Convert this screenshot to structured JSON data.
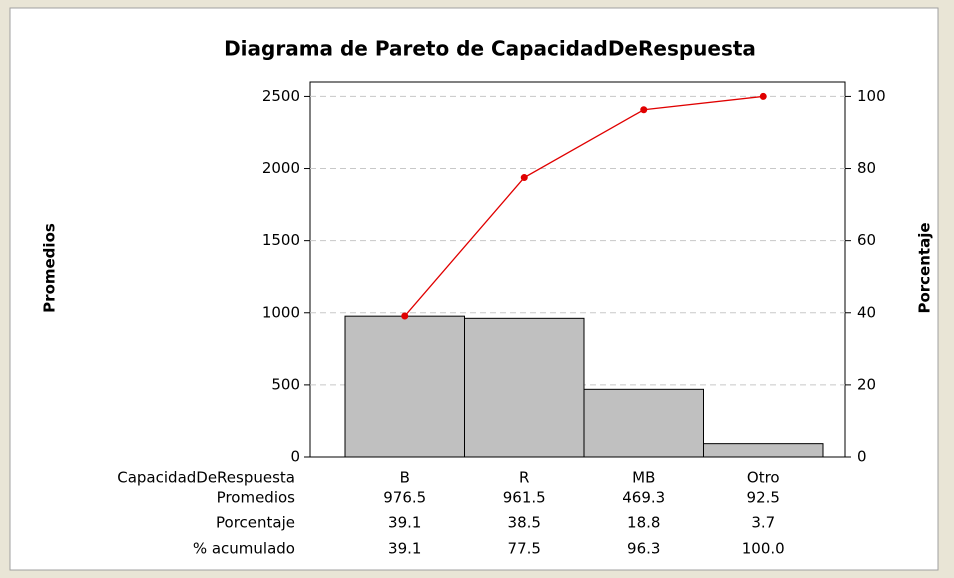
{
  "chart_data": {
    "type": "pareto",
    "title": "Diagrama de Pareto de CapacidadDeRespuesta",
    "xlabel": "CapacidadDeRespuesta",
    "ylabel": "Promedios",
    "y2label": "Porcentaje",
    "categories": [
      "B",
      "R",
      "MB",
      "Otro"
    ],
    "series": [
      {
        "name": "Promedios",
        "color": "#c0c0c0",
        "values": [
          976.5,
          961.5,
          469.3,
          92.5
        ]
      },
      {
        "name": "% acumulado",
        "color": "#e00000",
        "axis": "y2",
        "values": [
          39.1,
          77.5,
          96.3,
          100
        ],
        "value_labels": [
          "39.1",
          "77.5",
          "96.3",
          "100.0"
        ]
      }
    ],
    "percent": {
      "name": "Porcentaje",
      "values": [
        39.1,
        38.5,
        18.8,
        3.7
      ]
    },
    "ylim": [
      0,
      2600
    ],
    "yticks": [
      0,
      500,
      1000,
      1500,
      2000,
      2500
    ],
    "y2lim": [
      0,
      104
    ],
    "y2ticks": [
      0,
      20,
      40,
      60,
      80,
      100
    ],
    "grid": true
  }
}
